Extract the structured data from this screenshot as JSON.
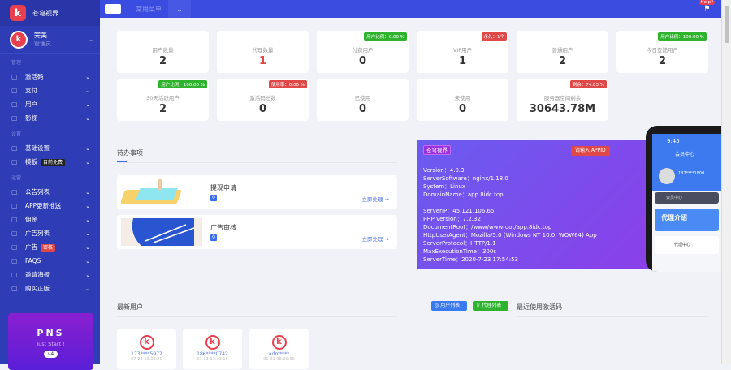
{
  "app": {
    "title": "苍穹视界",
    "user_name": "完美",
    "user_role": "管理员"
  },
  "sidebar": {
    "sections": [
      {
        "label": "管理",
        "items": [
          {
            "label": "激活码",
            "icon": "globe-icon"
          },
          {
            "label": "支付",
            "icon": "wallet-icon"
          },
          {
            "label": "用户",
            "icon": "users-icon"
          },
          {
            "label": "影视",
            "icon": "film-icon"
          }
        ]
      },
      {
        "label": "设置",
        "items": [
          {
            "label": "基础设置",
            "icon": "layout-icon"
          },
          {
            "label": "模板",
            "icon": "palette-icon",
            "tag": "目前免费"
          }
        ]
      },
      {
        "label": "运营",
        "items": [
          {
            "label": "公告列表",
            "icon": "image-icon"
          },
          {
            "label": "APP更新推送",
            "icon": "robot-icon"
          },
          {
            "label": "佣金",
            "icon": "wallet-icon"
          },
          {
            "label": "广告列表",
            "icon": "box-icon"
          },
          {
            "label": "广告",
            "icon": "alarm-icon",
            "tag": "审核"
          },
          {
            "label": "FAQS",
            "icon": "pill-icon"
          },
          {
            "label": "邀请海报",
            "icon": "picture-icon"
          },
          {
            "label": "购买正版",
            "icon": "picture-icon"
          }
        ]
      }
    ],
    "promo": {
      "title": "PNS",
      "subtitle": "Just Start !",
      "version": "v4"
    }
  },
  "topbar": {
    "menu_label": "常用菜单",
    "help": "Help?"
  },
  "stats": [
    {
      "label": "用户数量",
      "value": "2"
    },
    {
      "label": "代理数量",
      "value": "1",
      "color": "#e04848"
    },
    {
      "label": "付费用户",
      "value": "0",
      "badge": "用户比例：0.00 %",
      "badge_color": "green"
    },
    {
      "label": "VIP用户",
      "value": "1",
      "badge": "永久：1个",
      "badge_color": "red"
    },
    {
      "label": "普通用户",
      "value": "2"
    },
    {
      "label": "今日登陆用户",
      "value": "2",
      "badge": "用户比例：100.00 %",
      "badge_color": "green"
    },
    {
      "label": "30天活跃用户",
      "value": "2",
      "badge": "用户比例：100.00 %",
      "badge_color": "green"
    },
    {
      "label": "激活码总数",
      "value": "0",
      "badge": "使用率：0.00 %",
      "badge_color": "red"
    },
    {
      "label": "已使用",
      "value": "0"
    },
    {
      "label": "未使用",
      "value": "0"
    },
    {
      "label": "服务器空间剩余",
      "value": "30643.78M",
      "badge": "剩余：74.83 %",
      "badge_color": "red"
    }
  ],
  "todo": {
    "title": "待办事项",
    "items": [
      {
        "title": "提现申请",
        "count": "0",
        "action": "立即处理 →"
      },
      {
        "title": "广告审核",
        "count": "0",
        "action": "立即处理 →"
      }
    ]
  },
  "server": {
    "name": "苍穹视界",
    "appid_btn": "请输入 APPID",
    "lines": [
      "Version：4.0.3",
      "ServerSoftware：nginx/1.18.0",
      "System：Linux",
      "DomainName：app.8idc.top",
      "",
      "ServerIP：45.121.106.65",
      "PHP Version：7.2.32",
      "DocumentRoot：/www/wwwroot/app.8idc.top",
      "HttpUserAgent：Mozilla/5.0 (Windows NT 10.0; WOW64) App",
      "ServerProtocol：HTTP/1.1",
      "MaxExecutionTime：300s",
      "ServerTime：2020-7-23 17:54:53"
    ]
  },
  "phone": {
    "time": "9:45",
    "header": "会员中心",
    "user": "187****1800",
    "menu": "会员中心",
    "banner": "代理介绍",
    "item": "代理中心"
  },
  "latest": {
    "title": "最新用户",
    "btn_users": "用户列表",
    "btn_agents": "代理列表",
    "codes_title": "最近使用激活码",
    "users": [
      {
        "phone": "173****5972",
        "date": "07-23 10:11:20"
      },
      {
        "phone": "186****0742",
        "date": "07-13 13:03:16"
      },
      {
        "phone": "adm****",
        "date": "01-01 08:00:00"
      }
    ]
  }
}
